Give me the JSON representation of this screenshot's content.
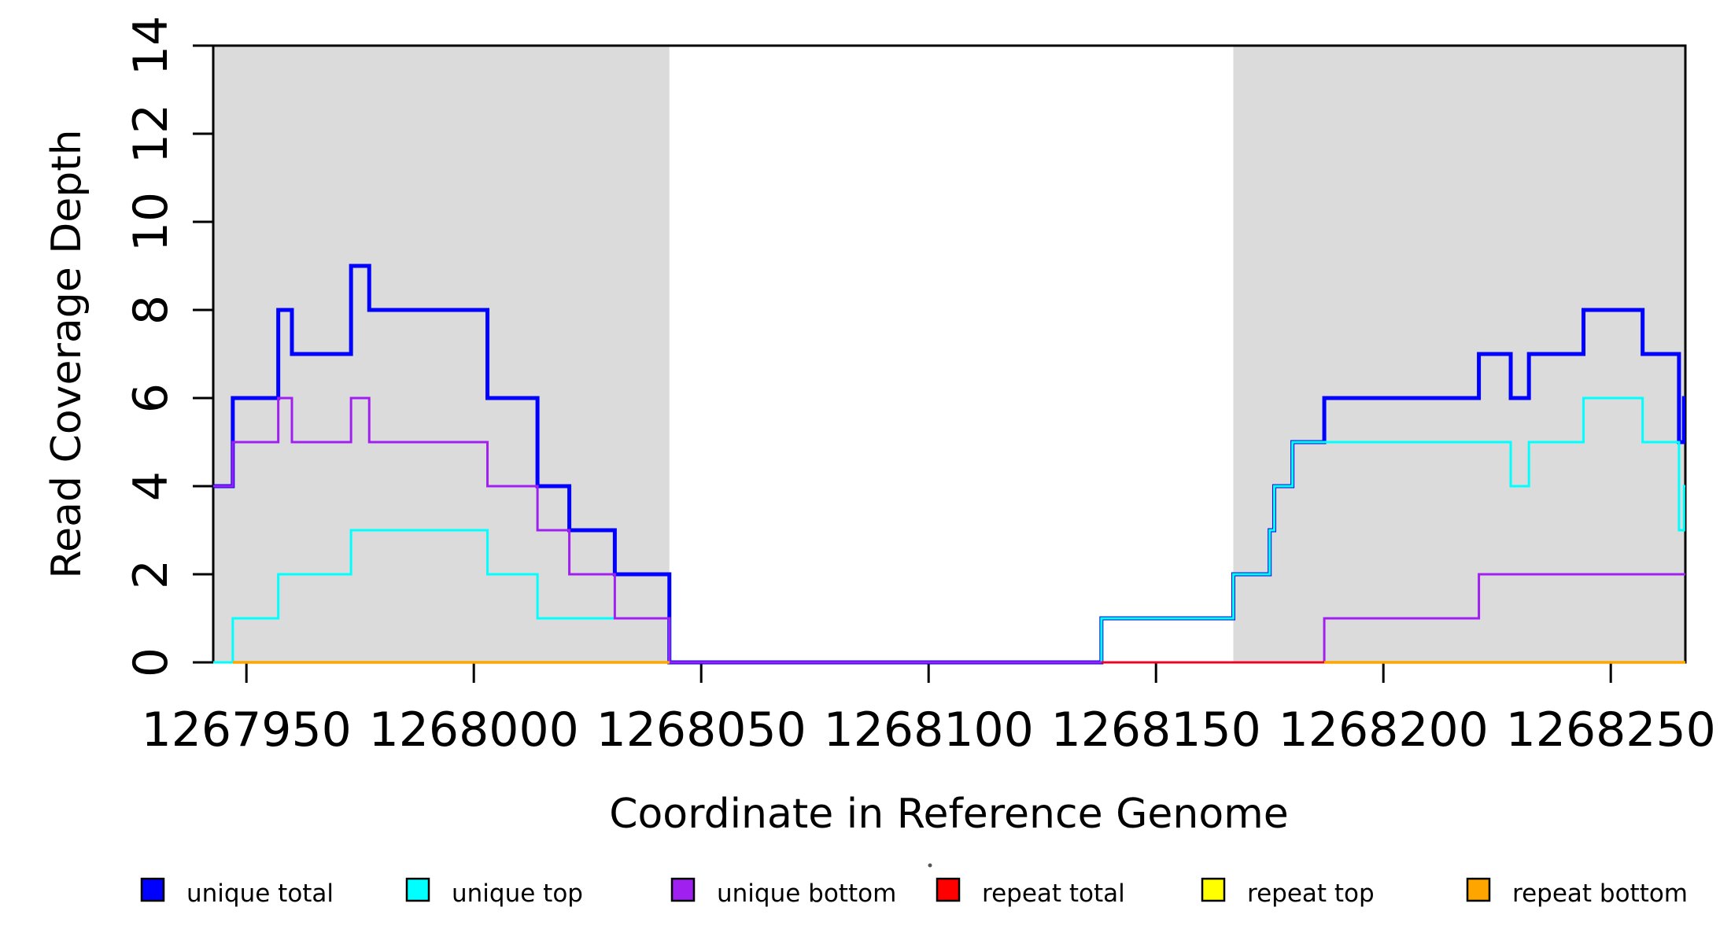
{
  "figure": {
    "background": "#FFFFFF",
    "shade_color": "#DBDBDB",
    "axis_color": "#000000"
  },
  "chart_data": {
    "type": "line",
    "subtype": "step-coverage",
    "title": "",
    "xlabel": "Coordinate in Reference Genome",
    "ylabel": "Read Coverage Depth",
    "xlim": [
      1267942.7,
      1268266.4
    ],
    "ylim": [
      0,
      14
    ],
    "xticks": [
      1267950,
      1268000,
      1268050,
      1268100,
      1268150,
      1268200,
      1268250
    ],
    "yticks": [
      0,
      2,
      4,
      6,
      8,
      10,
      12,
      14
    ],
    "grid": false,
    "legend_position": "bottom",
    "shaded_regions": [
      {
        "x1": 1267942.7,
        "x2": 1268043,
        "color": "#DBDBDB"
      },
      {
        "x1": 1268167,
        "x2": 1268266.4,
        "color": "#DBDBDB"
      }
    ],
    "series": [
      {
        "name": "unique total",
        "color": "#0000FF",
        "width": 5,
        "runs": [
          {
            "xend": 1268266.4,
            "points": [
              [
                1267942.7,
                4
              ],
              [
                1267947,
                6
              ],
              [
                1267957,
                8
              ],
              [
                1267960,
                7
              ],
              [
                1267973,
                9
              ],
              [
                1267977,
                8
              ],
              [
                1268003,
                6
              ],
              [
                1268014,
                4
              ],
              [
                1268021,
                3
              ],
              [
                1268031,
                2
              ],
              [
                1268043,
                0
              ],
              [
                1268138,
                1
              ],
              [
                1268167,
                2
              ],
              [
                1268175,
                3
              ],
              [
                1268176,
                4
              ],
              [
                1268180,
                5
              ],
              [
                1268187,
                6
              ],
              [
                1268221,
                7
              ],
              [
                1268228,
                6
              ],
              [
                1268232,
                7
              ],
              [
                1268244,
                8
              ],
              [
                1268257,
                7
              ],
              [
                1268265,
                5
              ],
              [
                1268266.1,
                6
              ]
            ]
          }
        ]
      },
      {
        "name": "unique top",
        "color": "#00FFFF",
        "width": 3,
        "runs": [
          {
            "xend": 1268266.4,
            "points": [
              [
                1267942.7,
                0
              ],
              [
                1267947,
                1
              ],
              [
                1267957,
                2
              ],
              [
                1267973,
                3
              ],
              [
                1268003,
                2
              ],
              [
                1268014,
                1
              ],
              [
                1268043,
                0
              ],
              [
                1268138,
                1
              ],
              [
                1268167,
                2
              ],
              [
                1268175,
                3
              ],
              [
                1268176,
                4
              ],
              [
                1268180,
                5
              ],
              [
                1268228,
                4
              ],
              [
                1268232,
                5
              ],
              [
                1268244,
                6
              ],
              [
                1268257,
                5
              ],
              [
                1268265,
                3
              ],
              [
                1268266.1,
                4
              ]
            ]
          }
        ]
      },
      {
        "name": "unique bottom",
        "color": "#A020F0",
        "width": 3,
        "runs": [
          {
            "xend": 1268266.4,
            "points": [
              [
                1267942.7,
                4
              ],
              [
                1267947,
                5
              ],
              [
                1267957,
                6
              ],
              [
                1267960,
                5
              ],
              [
                1267973,
                6
              ],
              [
                1267977,
                5
              ],
              [
                1268003,
                4
              ],
              [
                1268014,
                3
              ],
              [
                1268021,
                2
              ],
              [
                1268031,
                1
              ],
              [
                1268043,
                0
              ],
              [
                1268187,
                1
              ],
              [
                1268221,
                2
              ]
            ]
          }
        ]
      },
      {
        "name": "repeat total",
        "color": "#FF0000",
        "width": 2.5,
        "runs": [
          {
            "xend": 1268266.4,
            "points": [
              [
                1268138,
                0
              ]
            ]
          }
        ]
      },
      {
        "name": "repeat top",
        "color": "#FFFF00",
        "width": 3,
        "runs": [
          {
            "xend": 1268043,
            "points": [
              [
                1267947,
                0
              ]
            ]
          },
          {
            "xend": 1268266.4,
            "points": [
              [
                1268187,
                0
              ]
            ]
          }
        ]
      },
      {
        "name": "repeat bottom",
        "color": "#FFA500",
        "width": 3.5,
        "runs": [
          {
            "xend": 1268043,
            "points": [
              [
                1267947,
                0
              ]
            ]
          },
          {
            "xend": 1268266.4,
            "points": [
              [
                1268187,
                0
              ]
            ]
          }
        ]
      }
    ],
    "legend": {
      "items": [
        {
          "label": "unique total",
          "color": "#0000FF"
        },
        {
          "label": "unique top",
          "color": "#00FFFF"
        },
        {
          "label": "unique bottom",
          "color": "#A020F0"
        },
        {
          "label": "repeat total",
          "color": "#FF0000"
        },
        {
          "label": "repeat top",
          "color": "#FFFF00"
        },
        {
          "label": "repeat bottom",
          "color": "#FFA500"
        }
      ]
    }
  }
}
